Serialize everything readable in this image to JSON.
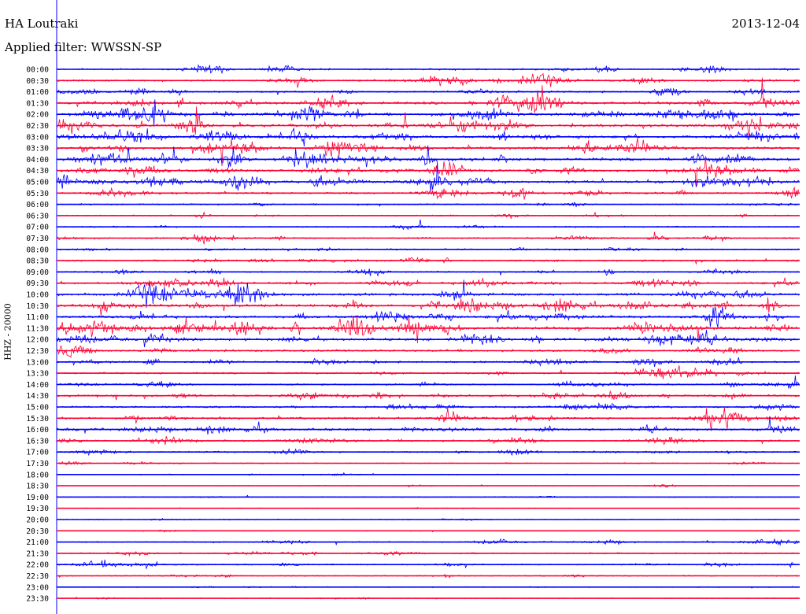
{
  "header": {
    "station": "HA Loutraki",
    "date": "2013-12-04",
    "filter": "Applied filter: WWSSN-SP",
    "channel": "HHZ - 20000"
  },
  "colors": {
    "trace_a": "#0000ff",
    "trace_b": "#ff0033"
  },
  "chart_data": {
    "type": "line",
    "description_free": true,
    "rows": [
      {
        "label": "00:00",
        "color": "blue",
        "activity": 0.45
      },
      {
        "label": "00:30",
        "color": "red",
        "activity": 0.55
      },
      {
        "label": "01:00",
        "color": "blue",
        "activity": 0.5
      },
      {
        "label": "01:30",
        "color": "red",
        "activity": 0.95
      },
      {
        "label": "02:00",
        "color": "blue",
        "activity": 1.0
      },
      {
        "label": "02:30",
        "color": "red",
        "activity": 0.9
      },
      {
        "label": "03:00",
        "color": "blue",
        "activity": 0.85
      },
      {
        "label": "03:30",
        "color": "red",
        "activity": 0.9
      },
      {
        "label": "04:00",
        "color": "blue",
        "activity": 0.95
      },
      {
        "label": "04:30",
        "color": "red",
        "activity": 0.8
      },
      {
        "label": "05:00",
        "color": "blue",
        "activity": 0.85
      },
      {
        "label": "05:30",
        "color": "red",
        "activity": 0.55
      },
      {
        "label": "06:00",
        "color": "blue",
        "activity": 0.35
      },
      {
        "label": "06:30",
        "color": "red",
        "activity": 0.3
      },
      {
        "label": "07:00",
        "color": "blue",
        "activity": 0.3
      },
      {
        "label": "07:30",
        "color": "red",
        "activity": 0.4
      },
      {
        "label": "08:00",
        "color": "blue",
        "activity": 0.35
      },
      {
        "label": "08:30",
        "color": "red",
        "activity": 0.45
      },
      {
        "label": "09:00",
        "color": "blue",
        "activity": 0.4
      },
      {
        "label": "09:30",
        "color": "red",
        "activity": 0.7
      },
      {
        "label": "10:00",
        "color": "blue",
        "activity": 0.85
      },
      {
        "label": "10:30",
        "color": "red",
        "activity": 0.9
      },
      {
        "label": "11:00",
        "color": "blue",
        "activity": 0.85
      },
      {
        "label": "11:30",
        "color": "red",
        "activity": 0.95
      },
      {
        "label": "12:00",
        "color": "blue",
        "activity": 0.8
      },
      {
        "label": "12:30",
        "color": "red",
        "activity": 0.6
      },
      {
        "label": "13:00",
        "color": "blue",
        "activity": 0.55
      },
      {
        "label": "13:30",
        "color": "red",
        "activity": 0.45
      },
      {
        "label": "14:00",
        "color": "blue",
        "activity": 0.45
      },
      {
        "label": "14:30",
        "color": "red",
        "activity": 0.6
      },
      {
        "label": "15:00",
        "color": "blue",
        "activity": 0.6
      },
      {
        "label": "15:30",
        "color": "red",
        "activity": 0.7
      },
      {
        "label": "16:00",
        "color": "blue",
        "activity": 0.75
      },
      {
        "label": "16:30",
        "color": "red",
        "activity": 0.55
      },
      {
        "label": "17:00",
        "color": "blue",
        "activity": 0.4
      },
      {
        "label": "17:30",
        "color": "red",
        "activity": 0.2
      },
      {
        "label": "18:00",
        "color": "blue",
        "activity": 0.12
      },
      {
        "label": "18:30",
        "color": "red",
        "activity": 0.1
      },
      {
        "label": "19:00",
        "color": "blue",
        "activity": 0.12
      },
      {
        "label": "19:30",
        "color": "red",
        "activity": 0.1
      },
      {
        "label": "20:00",
        "color": "blue",
        "activity": 0.1
      },
      {
        "label": "20:30",
        "color": "red",
        "activity": 0.1
      },
      {
        "label": "21:00",
        "color": "blue",
        "activity": 0.3
      },
      {
        "label": "21:30",
        "color": "red",
        "activity": 0.35
      },
      {
        "label": "22:00",
        "color": "blue",
        "activity": 0.35
      },
      {
        "label": "22:30",
        "color": "red",
        "activity": 0.2
      },
      {
        "label": "23:00",
        "color": "blue",
        "activity": 0.15
      },
      {
        "label": "23:30",
        "color": "red",
        "activity": 0.15
      }
    ]
  }
}
